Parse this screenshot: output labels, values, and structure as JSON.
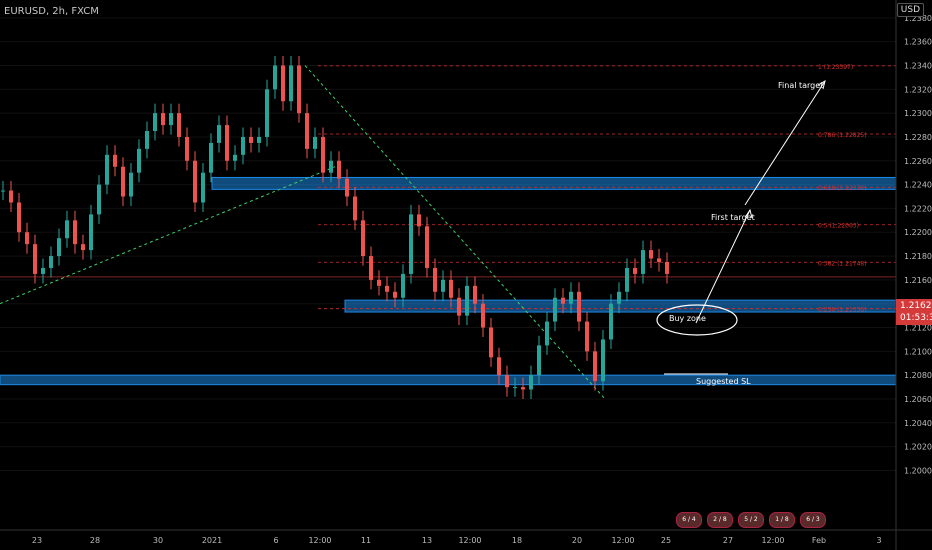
{
  "header": {
    "symbol": "EURUSD, 2h, FXCM",
    "currency": "USD"
  },
  "price_tags": {
    "current_price": "1.21625",
    "countdown": "01:53:39"
  },
  "annotations": {
    "final_target": "Final target",
    "first_target": "First target",
    "buy_zone": "Buy zone",
    "suggested_sl": "Suggested SL"
  },
  "fib_levels": [
    {
      "label": "1 (1.23397)",
      "price": 1.23397
    },
    {
      "label": "0.786 (1.22825)",
      "price": 1.22825
    },
    {
      "label": "0.618 (1.22378)",
      "price": 1.22378
    },
    {
      "label": "0.5 (1.22063)",
      "price": 1.22063
    },
    {
      "label": "0.382 (1.21748)",
      "price": 1.21748
    },
    {
      "label": "0.236 (1.21358)",
      "price": 1.21358
    }
  ],
  "zones": [
    {
      "name": "upper-zone",
      "top": 1.2246,
      "bottom": 1.2236
    },
    {
      "name": "buy-zone-box",
      "top": 1.2143,
      "bottom": 1.2133
    },
    {
      "name": "lower-zone",
      "top": 1.208,
      "bottom": 1.2072
    }
  ],
  "badges": [
    "6 / 4",
    "2 / 8",
    "5 / 2",
    "1 / 8",
    "6 / 3"
  ],
  "colors": {
    "bull": "#26a69a",
    "bear": "#ef5350",
    "zone": "#1e88e5",
    "fib": "#d32f2f",
    "trend": "#3ecf6a"
  },
  "chart_data": {
    "type": "line",
    "y_axis": {
      "range": [
        1.195,
        1.2395
      ],
      "ticks": [
        "1.23800",
        "1.23600",
        "1.23400",
        "1.23200",
        "1.23000",
        "1.22800",
        "1.22600",
        "1.22400",
        "1.22200",
        "1.22000",
        "1.21800",
        "1.21600",
        "1.21400",
        "1.21200",
        "1.21000",
        "1.20800",
        "1.20600",
        "1.20400",
        "1.20200",
        "1.20000"
      ]
    },
    "x_axis": {
      "ticks": [
        "23",
        "28",
        "30",
        "2021",
        "6",
        "12:00",
        "11",
        "13",
        "12:00",
        "18",
        "20",
        "12:00",
        "25",
        "27",
        "12:00",
        "Feb",
        "3"
      ]
    },
    "series": [
      {
        "x": [
          0,
          8,
          16,
          24,
          32,
          40,
          48,
          56,
          64,
          72,
          80,
          88,
          96,
          104,
          112,
          120,
          128,
          136,
          144,
          152,
          160,
          168,
          176,
          184,
          192,
          200,
          208,
          216,
          224,
          232,
          240,
          248,
          256,
          264,
          272,
          280,
          288,
          296,
          304,
          312,
          320,
          328,
          336,
          344,
          352,
          360,
          368,
          376,
          384,
          392,
          400,
          408,
          416,
          424,
          432,
          440,
          448,
          456,
          464,
          472,
          480,
          488,
          496,
          504,
          512,
          520,
          528,
          536,
          544,
          552,
          560,
          568,
          576,
          584,
          592,
          600,
          608,
          616,
          624,
          632,
          640,
          648,
          656,
          664
        ],
        "values": [
          1.2235,
          1.2225,
          1.22,
          1.219,
          1.2165,
          1.217,
          1.218,
          1.2195,
          1.221,
          1.219,
          1.2185,
          1.2215,
          1.224,
          1.2265,
          1.2255,
          1.223,
          1.225,
          1.227,
          1.2285,
          1.23,
          1.229,
          1.23,
          1.228,
          1.226,
          1.2225,
          1.225,
          1.2275,
          1.229,
          1.226,
          1.2265,
          1.228,
          1.2275,
          1.228,
          1.232,
          1.234,
          1.231,
          1.234,
          1.23,
          1.227,
          1.228,
          1.225,
          1.226,
          1.2245,
          1.223,
          1.221,
          1.218,
          1.216,
          1.2155,
          1.215,
          1.2145,
          1.2165,
          1.2215,
          1.2205,
          1.217,
          1.215,
          1.216,
          1.2145,
          1.213,
          1.2155,
          1.214,
          1.212,
          1.2095,
          1.208,
          1.207,
          1.207,
          1.2068,
          1.208,
          1.2105,
          1.2125,
          1.2145,
          1.214,
          1.215,
          1.2125,
          1.21,
          1.2075,
          1.211,
          1.214,
          1.215,
          1.217,
          1.2165,
          1.2185,
          1.2178,
          1.2175,
          1.2165
        ]
      }
    ]
  }
}
